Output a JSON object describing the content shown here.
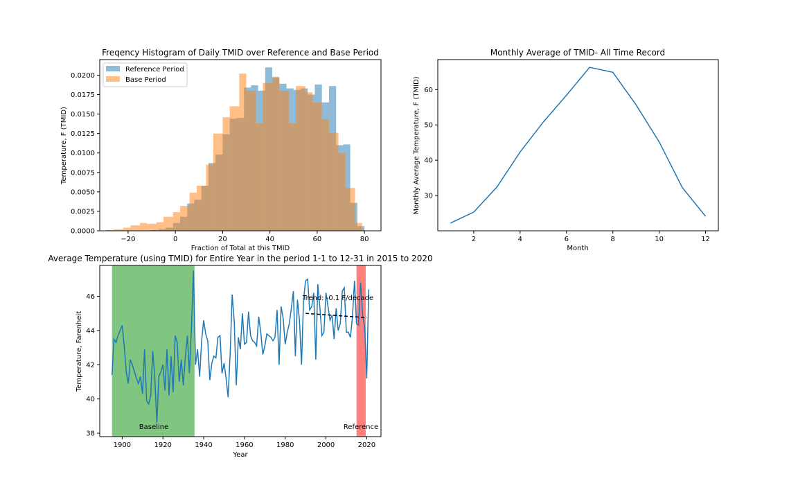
{
  "chart_data": [
    {
      "type": "bar",
      "title": "Freqency Histogram of Daily TMID over Reference and Base Period",
      "xlabel": "Fraction of Total at this TMID",
      "ylabel": "Temperature, F (TMID)",
      "xlim": [
        -32,
        87
      ],
      "ylim": [
        0,
        0.022
      ],
      "xticks": [
        -20,
        0,
        20,
        40,
        60,
        80
      ],
      "yticks": [
        0,
        0.0025,
        0.005,
        0.0075,
        0.01,
        0.0125,
        0.015,
        0.0175,
        0.02
      ],
      "ytick_labels": [
        "0.0000",
        "0.0025",
        "0.0050",
        "0.0075",
        "0.0100",
        "0.0125",
        "0.0150",
        "0.0175",
        "0.0200"
      ],
      "legend": {
        "placement": "upper-left"
      },
      "series": [
        {
          "name": "Reference Period",
          "color": "#1f77b4",
          "opacity": 0.5,
          "bins": [
            [
              -10,
              -7,
              0.0001
            ],
            [
              -7,
              -4,
              0.0002
            ],
            [
              -4,
              -1,
              0.0004
            ],
            [
              -1,
              2,
              0.001
            ],
            [
              2,
              5,
              0.0018
            ],
            [
              5,
              8,
              0.0035
            ],
            [
              8,
              11,
              0.004
            ],
            [
              11,
              14,
              0.0058
            ],
            [
              14,
              17,
              0.0087
            ],
            [
              17,
              20,
              0.0098
            ],
            [
              20,
              23,
              0.0124
            ],
            [
              23,
              26,
              0.0144
            ],
            [
              26,
              29,
              0.0145
            ],
            [
              29,
              32,
              0.0184
            ],
            [
              32,
              35,
              0.0187
            ],
            [
              35,
              38,
              0.018
            ],
            [
              38,
              41,
              0.021
            ],
            [
              41,
              44,
              0.0197
            ],
            [
              44,
              47,
              0.0189
            ],
            [
              47,
              50,
              0.0183
            ],
            [
              50,
              53,
              0.0181
            ],
            [
              53,
              56,
              0.0183
            ],
            [
              56,
              59,
              0.0175
            ],
            [
              59,
              62,
              0.0188
            ],
            [
              62,
              65,
              0.0165
            ],
            [
              65,
              68,
              0.0186
            ],
            [
              68,
              71,
              0.011
            ],
            [
              71,
              74,
              0.0111
            ],
            [
              74,
              77,
              0.0036
            ],
            [
              77,
              80,
              0.0006
            ]
          ]
        },
        {
          "name": "Base Period",
          "color": "#ff7f0e",
          "opacity": 0.5,
          "bins": [
            [
              -29,
              -26,
              0.0001
            ],
            [
              -26,
              -22,
              0.0002
            ],
            [
              -22,
              -19,
              0.0004
            ],
            [
              -19,
              -15,
              0.0007
            ],
            [
              -15,
              -12,
              0.001
            ],
            [
              -12,
              -8,
              0.0009
            ],
            [
              -8,
              -5,
              0.0011
            ],
            [
              -5,
              -1,
              0.0018
            ],
            [
              -1,
              2,
              0.0024
            ],
            [
              2,
              6,
              0.0032
            ],
            [
              6,
              9,
              0.0049
            ],
            [
              9,
              13,
              0.0058
            ],
            [
              13,
              16,
              0.0085
            ],
            [
              16,
              20,
              0.0125
            ],
            [
              20,
              23,
              0.0146
            ],
            [
              23,
              27,
              0.016
            ],
            [
              27,
              30,
              0.0202
            ],
            [
              30,
              34,
              0.018
            ],
            [
              34,
              37,
              0.0138
            ],
            [
              37,
              41,
              0.019
            ],
            [
              41,
              44,
              0.0198
            ],
            [
              44,
              48,
              0.018
            ],
            [
              48,
              51,
              0.0138
            ],
            [
              51,
              55,
              0.0186
            ],
            [
              55,
              58,
              0.0178
            ],
            [
              58,
              62,
              0.0165
            ],
            [
              62,
              65,
              0.0143
            ],
            [
              65,
              69,
              0.0126
            ],
            [
              69,
              72,
              0.01
            ],
            [
              72,
              76,
              0.0055
            ],
            [
              76,
              79,
              0.001
            ]
          ]
        }
      ]
    },
    {
      "type": "line",
      "title": "Monthly Average of TMID- All Time Record",
      "xlabel": "Month",
      "ylabel": "Monthly Average Temperature, F (TMID)",
      "xlim": [
        0.45,
        12.55
      ],
      "ylim": [
        20,
        68.5
      ],
      "xticks": [
        2,
        4,
        6,
        8,
        10,
        12
      ],
      "yticks": [
        30,
        40,
        50,
        60
      ],
      "series": [
        {
          "color": "#1f77b4",
          "x": [
            1,
            2,
            3,
            4,
            5,
            6,
            7,
            8,
            9,
            10,
            11,
            12
          ],
          "y": [
            22.2,
            25.3,
            32.4,
            42.3,
            50.8,
            58.4,
            66.3,
            64.9,
            55.7,
            45.2,
            32.2,
            24.1
          ]
        }
      ]
    },
    {
      "type": "line",
      "title": "Average Temperature (using TMID) for Entire Year in the period 1-1 to 12-31 in 2015 to 2020",
      "xlabel": "Year",
      "ylabel": "Temperature, Farenheit",
      "xlim": [
        1889,
        2027
      ],
      "ylim": [
        37.8,
        47.8
      ],
      "xticks": [
        1900,
        1920,
        1940,
        1960,
        1980,
        2000,
        2020
      ],
      "yticks": [
        38,
        40,
        42,
        44,
        46
      ],
      "shaded_regions": [
        {
          "label": "Baseline",
          "from": 1895,
          "to": 1935.5,
          "color": "#2ca02c",
          "opacity": 0.6
        },
        {
          "label": "Reference",
          "from": 2015,
          "to": 2019.5,
          "color": "#ff0000",
          "opacity": 0.5
        }
      ],
      "trend": {
        "label": "Trend: -0.1 F/decade",
        "x": [
          1990,
          2020
        ],
        "y": [
          45.0,
          44.75
        ],
        "style": "dashed"
      },
      "series": [
        {
          "color": "#1f77b4",
          "x": [
            1895,
            1896,
            1897,
            1898,
            1899,
            1900,
            1901,
            1902,
            1903,
            1904,
            1905,
            1906,
            1907,
            1908,
            1909,
            1910,
            1911,
            1912,
            1913,
            1914,
            1915,
            1916,
            1917,
            1918,
            1919,
            1920,
            1921,
            1922,
            1923,
            1924,
            1925,
            1926,
            1927,
            1928,
            1929,
            1930,
            1931,
            1932,
            1933,
            1934,
            1935,
            1936,
            1937,
            1938,
            1939,
            1940,
            1941,
            1942,
            1943,
            1944,
            1945,
            1946,
            1947,
            1948,
            1949,
            1950,
            1951,
            1952,
            1953,
            1954,
            1955,
            1956,
            1957,
            1958,
            1959,
            1960,
            1961,
            1962,
            1963,
            1964,
            1965,
            1966,
            1967,
            1968,
            1969,
            1970,
            1971,
            1972,
            1973,
            1974,
            1975,
            1976,
            1977,
            1978,
            1979,
            1980,
            1981,
            1982,
            1983,
            1984,
            1985,
            1986,
            1987,
            1988,
            1989,
            1990,
            1991,
            1992,
            1993,
            1994,
            1995,
            1996,
            1997,
            1998,
            1999,
            2000,
            2001,
            2002,
            2003,
            2004,
            2005,
            2006,
            2007,
            2008,
            2009,
            2010,
            2011,
            2012,
            2013,
            2014,
            2015,
            2016,
            2017,
            2018,
            2019,
            2020,
            2021
          ],
          "y": [
            41.4,
            43.5,
            43.3,
            43.7,
            44.0,
            44.3,
            43.1,
            41.6,
            40.9,
            42.3,
            42.0,
            41.6,
            41.2,
            40.9,
            41.3,
            40.3,
            42.9,
            39.9,
            39.7,
            40.2,
            42.8,
            41.3,
            38.6,
            41.3,
            41.6,
            42.0,
            40.5,
            42.9,
            40.2,
            42.5,
            40.4,
            43.7,
            43.3,
            41.0,
            42.3,
            40.8,
            42.5,
            43.7,
            41.5,
            44.2,
            47.5,
            42.0,
            42.9,
            41.3,
            43.4,
            44.6,
            43.8,
            43.4,
            41.1,
            42.1,
            42.5,
            42.4,
            43.6,
            43.7,
            41.5,
            42.1,
            41.2,
            40.1,
            42.7,
            46.1,
            44.5,
            40.8,
            43.6,
            42.9,
            45.0,
            43.2,
            43.3,
            45.1,
            43.7,
            43.4,
            43.3,
            43.1,
            44.8,
            43.9,
            42.6,
            43.1,
            43.8,
            43.7,
            43.6,
            43.4,
            43.6,
            45.2,
            42.0,
            45.4,
            44.7,
            43.2,
            43.9,
            44.4,
            45.3,
            46.3,
            42.5,
            45.8,
            44.6,
            42.0,
            45.8,
            46.9,
            47.0,
            45.2,
            45.4,
            46.2,
            42.3,
            46.7,
            45.4,
            43.7,
            43.9,
            46.2,
            45.4,
            44.6,
            44.9,
            43.5,
            45.3,
            44.0,
            44.4,
            46.3,
            46.5,
            43.9,
            43.9,
            43.6,
            44.8,
            46.9,
            44.4,
            44.3,
            46.8,
            44.9,
            44.2,
            41.2,
            46.4
          ]
        }
      ]
    }
  ]
}
